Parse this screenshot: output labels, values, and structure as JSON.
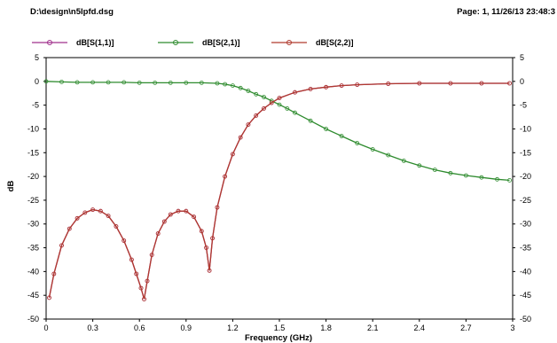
{
  "header": {
    "file_path": "D:\\design\\n5lpfd.dsg",
    "page_info": "Page: 1, 11/26/13 23:48:3"
  },
  "chart_data": {
    "type": "line",
    "xlabel": "Frequency (GHz)",
    "ylabel": "dB",
    "xlim": [
      0,
      3
    ],
    "ylim": [
      -50,
      5
    ],
    "xticks": [
      "0",
      "0.3",
      "0.6",
      "0.9",
      "1.2",
      "1.5",
      "1.8",
      "2.1",
      "2.4",
      "2.7",
      "3"
    ],
    "yticks": [
      "5",
      "0",
      "-5",
      "-10",
      "-15",
      "-20",
      "-25",
      "-30",
      "-35",
      "-40",
      "-45",
      "-50"
    ],
    "grid": false,
    "legend_position": "top",
    "series": [
      {
        "name": "dB[S(1,1)]",
        "color": "#a0308c",
        "marker": "circle",
        "x": [
          0.02,
          0.05,
          0.1,
          0.15,
          0.2,
          0.25,
          0.3,
          0.35,
          0.4,
          0.45,
          0.5,
          0.55,
          0.58,
          0.61,
          0.63,
          0.65,
          0.68,
          0.72,
          0.76,
          0.8,
          0.85,
          0.9,
          0.95,
          1.0,
          1.03,
          1.05,
          1.07,
          1.1,
          1.15,
          1.2,
          1.25,
          1.3,
          1.35,
          1.4,
          1.45,
          1.5,
          1.6,
          1.7,
          1.8,
          1.9,
          2.0,
          2.2,
          2.4,
          2.6,
          2.8,
          2.98
        ],
        "values": [
          -45.5,
          -40.5,
          -34.5,
          -31.0,
          -28.8,
          -27.6,
          -27.0,
          -27.3,
          -28.3,
          -30.5,
          -33.5,
          -37.5,
          -40.5,
          -43.5,
          -45.8,
          -42.0,
          -36.5,
          -32.0,
          -29.5,
          -28.0,
          -27.3,
          -27.3,
          -28.5,
          -31.5,
          -35.0,
          -39.8,
          -33.0,
          -26.5,
          -20.0,
          -15.3,
          -11.8,
          -9.1,
          -7.2,
          -5.7,
          -4.5,
          -3.5,
          -2.3,
          -1.6,
          -1.2,
          -0.9,
          -0.7,
          -0.5,
          -0.4,
          -0.4,
          -0.4,
          -0.4
        ]
      },
      {
        "name": "dB[S(2,1)]",
        "color": "#2e8b2e",
        "marker": "circle",
        "x": [
          0.0,
          0.1,
          0.2,
          0.3,
          0.4,
          0.5,
          0.6,
          0.7,
          0.8,
          0.9,
          1.0,
          1.1,
          1.15,
          1.2,
          1.25,
          1.3,
          1.35,
          1.4,
          1.45,
          1.5,
          1.55,
          1.6,
          1.7,
          1.8,
          1.9,
          2.0,
          2.1,
          2.2,
          2.3,
          2.4,
          2.5,
          2.6,
          2.7,
          2.8,
          2.9,
          2.98
        ],
        "values": [
          0.0,
          -0.1,
          -0.2,
          -0.2,
          -0.2,
          -0.2,
          -0.3,
          -0.3,
          -0.3,
          -0.3,
          -0.3,
          -0.4,
          -0.6,
          -0.9,
          -1.4,
          -2.0,
          -2.7,
          -3.3,
          -4.1,
          -4.9,
          -5.7,
          -6.6,
          -8.3,
          -10.0,
          -11.5,
          -13.0,
          -14.3,
          -15.5,
          -16.7,
          -17.7,
          -18.6,
          -19.3,
          -19.8,
          -20.2,
          -20.6,
          -20.8
        ]
      },
      {
        "name": "dB[S(2,2)]",
        "color": "#b03a2e",
        "marker": "circle",
        "x": [
          0.02,
          0.05,
          0.1,
          0.15,
          0.2,
          0.25,
          0.3,
          0.35,
          0.4,
          0.45,
          0.5,
          0.55,
          0.58,
          0.61,
          0.63,
          0.65,
          0.68,
          0.72,
          0.76,
          0.8,
          0.85,
          0.9,
          0.95,
          1.0,
          1.03,
          1.05,
          1.07,
          1.1,
          1.15,
          1.2,
          1.25,
          1.3,
          1.35,
          1.4,
          1.45,
          1.5,
          1.6,
          1.7,
          1.8,
          1.9,
          2.0,
          2.2,
          2.4,
          2.6,
          2.8,
          2.98
        ],
        "values": [
          -45.5,
          -40.5,
          -34.5,
          -31.0,
          -28.8,
          -27.6,
          -27.0,
          -27.3,
          -28.3,
          -30.5,
          -33.5,
          -37.5,
          -40.5,
          -43.5,
          -45.8,
          -42.0,
          -36.5,
          -32.0,
          -29.5,
          -28.0,
          -27.3,
          -27.3,
          -28.5,
          -31.5,
          -35.0,
          -39.8,
          -33.0,
          -26.5,
          -20.0,
          -15.3,
          -11.8,
          -9.1,
          -7.2,
          -5.7,
          -4.5,
          -3.5,
          -2.3,
          -1.6,
          -1.2,
          -0.9,
          -0.7,
          -0.5,
          -0.4,
          -0.4,
          -0.4,
          -0.4
        ]
      }
    ]
  }
}
